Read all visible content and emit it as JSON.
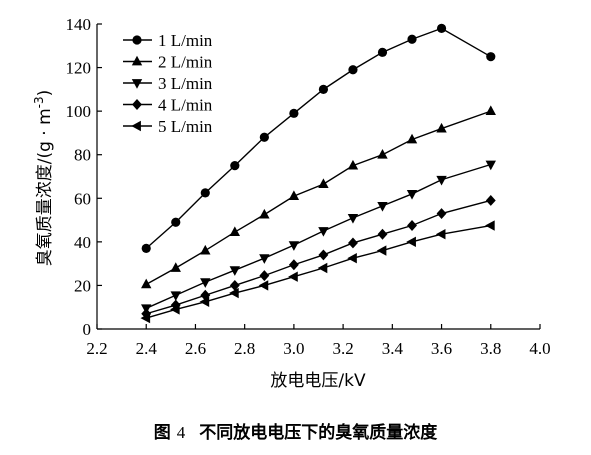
{
  "chart_data": {
    "type": "line",
    "title": "",
    "xlabel": "放电电压/kV",
    "ylabel_main": "臭氧质量浓度/(g · m",
    "ylabel_sup": "-3",
    "ylabel_tail": ")",
    "xlim": [
      2.2,
      4.0
    ],
    "ylim": [
      0,
      140
    ],
    "xticks": [
      "2.2",
      "2.4",
      "2.6",
      "2.8",
      "3.0",
      "3.2",
      "3.4",
      "3.6",
      "3.8",
      "4.0"
    ],
    "yticks": [
      "0",
      "20",
      "40",
      "60",
      "80",
      "100",
      "120",
      "140"
    ],
    "x": [
      2.4,
      2.52,
      2.64,
      2.76,
      2.88,
      3.0,
      3.12,
      3.24,
      3.36,
      3.48,
      3.6,
      3.8
    ],
    "legend_position": "top-left",
    "series": [
      {
        "name": "1 L/min",
        "marker": "circle",
        "values": [
          37,
          49,
          62.5,
          75,
          88,
          99,
          110,
          119,
          127,
          133,
          138,
          125
        ]
      },
      {
        "name": "2 L/min",
        "marker": "triangle-up",
        "values": [
          20.5,
          28,
          36,
          44.5,
          52.5,
          61,
          66.5,
          75,
          80,
          87,
          92,
          100
        ]
      },
      {
        "name": "3 L/min",
        "marker": "triangle-down",
        "values": [
          9.5,
          15.5,
          21.5,
          27,
          32.5,
          38.5,
          45,
          51,
          56.5,
          62,
          68.5,
          75.5
        ]
      },
      {
        "name": "4 L/min",
        "marker": "diamond",
        "values": [
          7,
          11,
          15.5,
          20,
          24.5,
          29.5,
          34,
          39.5,
          43.5,
          47.5,
          53,
          59
        ]
      },
      {
        "name": "5 L/min",
        "marker": "triangle-left",
        "values": [
          5,
          9,
          12.5,
          16.5,
          20,
          24,
          28,
          32.5,
          36,
          40,
          43.5,
          47.5
        ]
      }
    ]
  },
  "caption": {
    "prefix": "图",
    "number": "4",
    "text": "不同放电电压下的臭氧质量浓度"
  }
}
